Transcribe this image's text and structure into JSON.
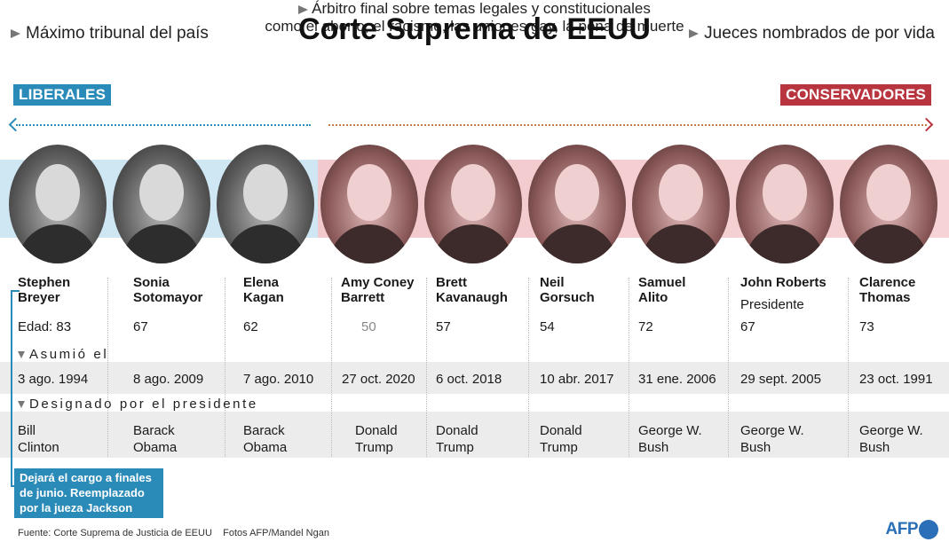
{
  "header": {
    "title": "Corte Suprema de EEUU",
    "feature_left": "Máximo tribunal del país",
    "feature_right": "Jueces nombrados de por vida",
    "feature_center_line1": "Árbitro final sobre temas legales y constitucionales",
    "feature_center_line2": "como el aborto, el racismo, las uniones gay, la pena de muerte"
  },
  "tags": {
    "liberal": "LIBERALES",
    "conservative": "CONSERVADORES"
  },
  "colors": {
    "liberal": "#2a8ab8",
    "conservative": "#b8353f"
  },
  "sections": {
    "asumio": "Asumió el",
    "designado": "Designado por el presidente"
  },
  "justices": [
    {
      "name_line1": "Stephen",
      "name_line2": "Breyer",
      "role": "",
      "age": "Edad: 83",
      "date": "3 ago. 1994",
      "pres_line1": "Bill",
      "pres_line2": "Clinton"
    },
    {
      "name_line1": "Sonia",
      "name_line2": "Sotomayor",
      "role": "",
      "age": "67",
      "date": "8 ago. 2009",
      "pres_line1": "Barack",
      "pres_line2": "Obama"
    },
    {
      "name_line1": "Elena",
      "name_line2": "Kagan",
      "role": "",
      "age": "62",
      "date": "7 ago. 2010",
      "pres_line1": "Barack",
      "pres_line2": "Obama"
    },
    {
      "name_line1": "Amy Coney",
      "name_line2": "Barrett",
      "role": "",
      "age": "50",
      "date": "27 oct. 2020",
      "pres_line1": "Donald",
      "pres_line2": "Trump"
    },
    {
      "name_line1": "Brett",
      "name_line2": "Kavanaugh",
      "role": "",
      "age": "57",
      "date": "6 oct. 2018",
      "pres_line1": "Donald",
      "pres_line2": "Trump"
    },
    {
      "name_line1": "Neil",
      "name_line2": "Gorsuch",
      "role": "",
      "age": "54",
      "date": "10 abr. 2017",
      "pres_line1": "Donald",
      "pres_line2": "Trump"
    },
    {
      "name_line1": "Samuel",
      "name_line2": "Alito",
      "role": "",
      "age": "72",
      "date": "31 ene. 2006",
      "pres_line1": "George W.",
      "pres_line2": "Bush"
    },
    {
      "name_line1": "John Roberts",
      "name_line2": "",
      "role": "Presidente",
      "age": "67",
      "date": "29 sept. 2005",
      "pres_line1": "George W.",
      "pres_line2": "Bush"
    },
    {
      "name_line1": "Clarence",
      "name_line2": "Thomas",
      "role": "",
      "age": "73",
      "date": "23 oct. 1991",
      "pres_line1": "George W.",
      "pres_line2": "Bush"
    }
  ],
  "note": "Dejará el cargo a finales de junio. Reemplazado por la jueza Jackson",
  "footer": {
    "source": "Fuente: Corte Suprema de Justicia de EEUU    Fotos AFP/Mandel Ngan",
    "logo": "AFP"
  }
}
